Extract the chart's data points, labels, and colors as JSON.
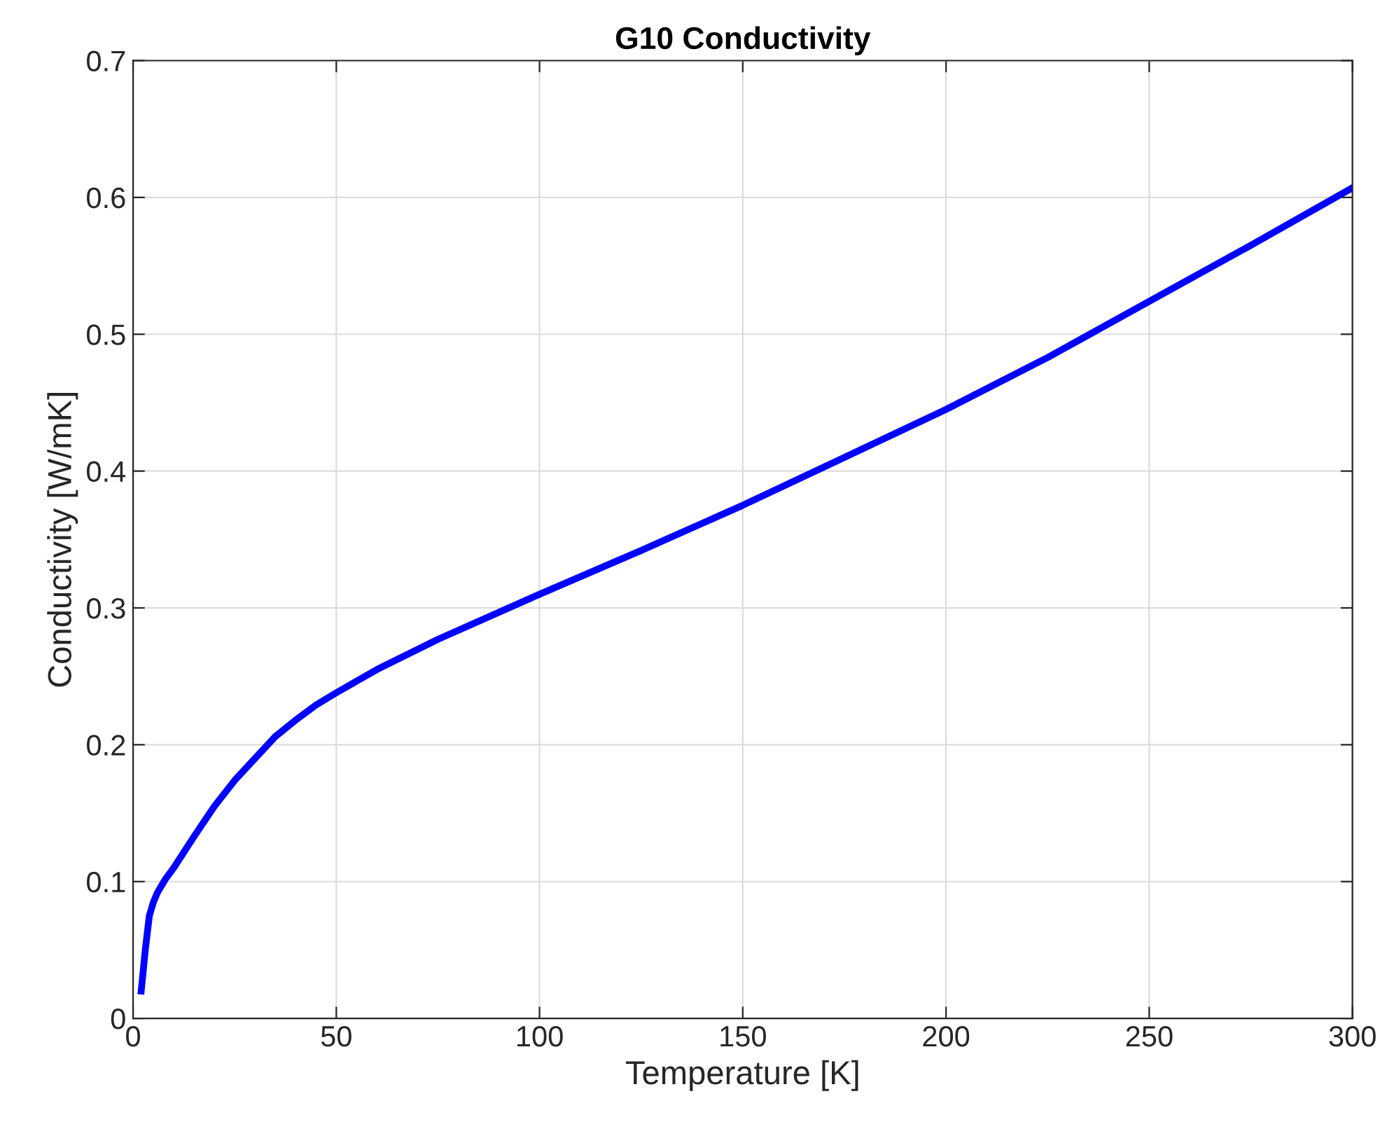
{
  "chart_data": {
    "type": "line",
    "title": "G10 Conductivity",
    "xlabel": "Temperature [K]",
    "ylabel": "Conductivity [W/mK]",
    "series": [
      {
        "color": "#0000ff",
        "x": [
          2,
          3,
          4,
          5,
          6,
          8,
          10,
          15,
          20,
          25,
          30,
          35,
          40,
          45,
          50,
          60,
          75,
          100,
          125,
          150,
          175,
          200,
          225,
          250,
          275,
          300
        ],
        "values": [
          0.02,
          0.05,
          0.075,
          0.085,
          0.092,
          0.102,
          0.11,
          0.133,
          0.155,
          0.174,
          0.19,
          0.206,
          0.218,
          0.229,
          0.238,
          0.255,
          0.277,
          0.31,
          0.342,
          0.375,
          0.41,
          0.445,
          0.483,
          0.524,
          0.565,
          0.607
        ]
      }
    ],
    "xlim": [
      0,
      300
    ],
    "ylim": [
      0,
      0.7
    ],
    "xticks": [
      0,
      50,
      100,
      150,
      200,
      250,
      300
    ],
    "yticks": [
      0,
      0.1,
      0.2,
      0.3,
      0.4,
      0.5,
      0.6,
      0.7
    ],
    "grid": true,
    "marker": "none",
    "line_style": "solid"
  }
}
